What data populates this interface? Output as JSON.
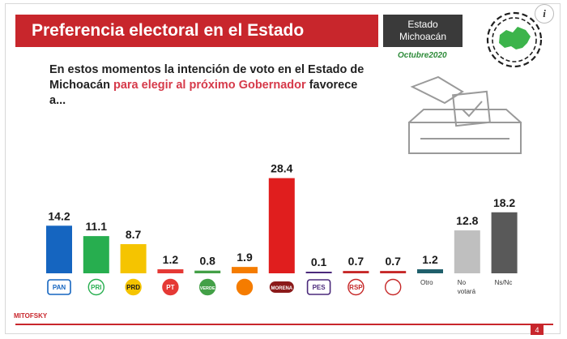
{
  "header": {
    "title": "Preferencia electoral en el Estado",
    "state_line1": "Estado",
    "state_line2": "Michoacán",
    "date": "Octubre2020"
  },
  "question": {
    "part1": "En estos momentos la intención de voto en el Estado de Michoacán ",
    "highlight": "para elegir al próximo Gobernador",
    "part2": " favorece a..."
  },
  "footer": {
    "brand": "MITOFSKY",
    "page": "4"
  },
  "colors": {
    "title_bar": "#c8262c",
    "state_box": "#3a3a3a",
    "highlight": "#d63a4a",
    "date": "#2e8b3a"
  },
  "chart_data": {
    "type": "bar",
    "categories": [
      "PAN",
      "PRI",
      "PRD",
      "PT",
      "VERDE",
      "MC",
      "MORENA",
      "PES",
      "RSP",
      "FXM",
      "Otro",
      "No votará",
      "Ns/Nc"
    ],
    "category_labels": [
      "PAN",
      "PRI",
      "PRD",
      "PT",
      "VERDE",
      "",
      "MORENA",
      "PES",
      "RSP",
      "",
      "Otro",
      "No votará",
      "Ns/Nc"
    ],
    "values": [
      14.2,
      11.1,
      8.7,
      1.2,
      0.8,
      1.9,
      28.4,
      0.1,
      0.7,
      0.7,
      1.2,
      12.8,
      18.2
    ],
    "value_labels": [
      "14.2",
      "11.1",
      "8.7",
      "1.2",
      "0.8",
      "1.9",
      "28.4",
      "0.1",
      "0.7",
      "0.7",
      "1.2",
      "12.8",
      "18.2"
    ],
    "colors": [
      "#1565c0",
      "#27ae4f",
      "#f5c400",
      "#e53935",
      "#43a047",
      "#f57c00",
      "#e01e1e",
      "#4b2a7b",
      "#c62828",
      "#c62828",
      "#1f5f6b",
      "#bfbfbf",
      "#595959"
    ],
    "logo_styles": [
      "pan",
      "pri",
      "prd",
      "pt",
      "verde",
      "mc",
      "morena",
      "pes",
      "rsp",
      "fxm",
      "text",
      "text",
      "text"
    ],
    "ylim": [
      0,
      30
    ],
    "grid": false,
    "title": "",
    "xlabel": "",
    "ylabel": ""
  }
}
